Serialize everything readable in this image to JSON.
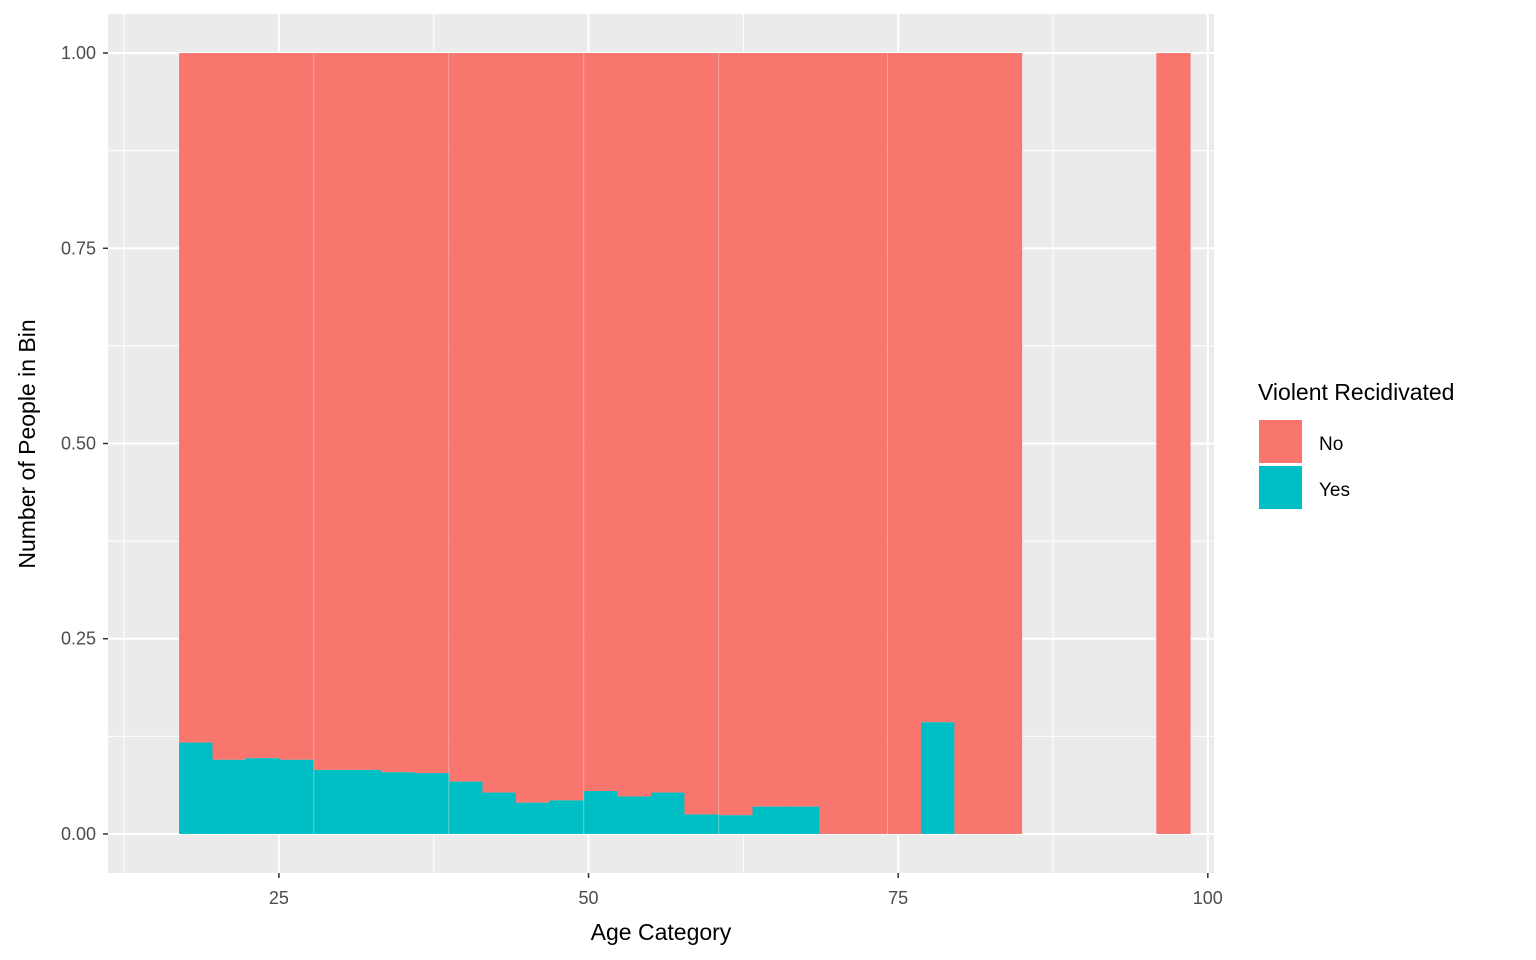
{
  "chart_data": {
    "type": "bar",
    "subtype": "stacked-fill-histogram",
    "xlabel": "Age Category",
    "ylabel": "Number of People in Bin",
    "xlim": [
      11.2,
      100.5
    ],
    "ylim": [
      -0.05,
      1.05
    ],
    "x_ticks": [
      25,
      50,
      75,
      100
    ],
    "x_tick_labels": [
      "25",
      "50",
      "75",
      "100"
    ],
    "y_ticks": [
      0,
      0.25,
      0.5,
      0.75,
      1.0
    ],
    "y_tick_labels": [
      "0.00",
      "0.25",
      "0.50",
      "0.75",
      "1.00"
    ],
    "grid": true,
    "legend": {
      "title": "Violent Recidivated",
      "position": "right",
      "entries": [
        {
          "label": "No",
          "color": "#F8766D"
        },
        {
          "label": "Yes",
          "color": "#00BFC4"
        }
      ]
    },
    "colors": {
      "No": "#F8766D",
      "Yes": "#00BFC4",
      "panel": "#EBEBEB",
      "grid": "#FFFFFF"
    },
    "bin_width": 2.72,
    "series": [
      {
        "name": "No",
        "color": "#F8766D",
        "x": [
          18.3,
          21.0,
          23.7,
          26.4,
          29.2,
          31.9,
          34.6,
          37.3,
          40.1,
          42.8,
          45.5,
          48.2,
          51.0,
          53.7,
          56.4,
          59.1,
          61.9,
          64.6,
          67.3,
          70.0,
          72.7,
          75.5,
          78.2,
          80.9,
          83.6,
          97.2
        ],
        "values": [
          0.883,
          0.905,
          0.903,
          0.905,
          0.918,
          0.918,
          0.921,
          0.922,
          0.933,
          0.947,
          0.96,
          0.957,
          0.945,
          0.952,
          0.947,
          0.975,
          0.976,
          0.965,
          0.965,
          1.0,
          1.0,
          1.0,
          0.857,
          1.0,
          1.0,
          1.0
        ]
      },
      {
        "name": "Yes",
        "color": "#00BFC4",
        "x": [
          18.3,
          21.0,
          23.7,
          26.4,
          29.2,
          31.9,
          34.6,
          37.3,
          40.1,
          42.8,
          45.5,
          48.2,
          51.0,
          53.7,
          56.4,
          59.1,
          61.9,
          64.6,
          67.3,
          70.0,
          72.7,
          75.5,
          78.2,
          80.9,
          83.6,
          97.2
        ],
        "values": [
          0.117,
          0.095,
          0.097,
          0.095,
          0.082,
          0.082,
          0.079,
          0.078,
          0.067,
          0.053,
          0.04,
          0.043,
          0.055,
          0.048,
          0.053,
          0.025,
          0.024,
          0.035,
          0.035,
          0.0,
          0.0,
          0.0,
          0.143,
          0.0,
          0.0,
          0.0
        ]
      }
    ]
  }
}
